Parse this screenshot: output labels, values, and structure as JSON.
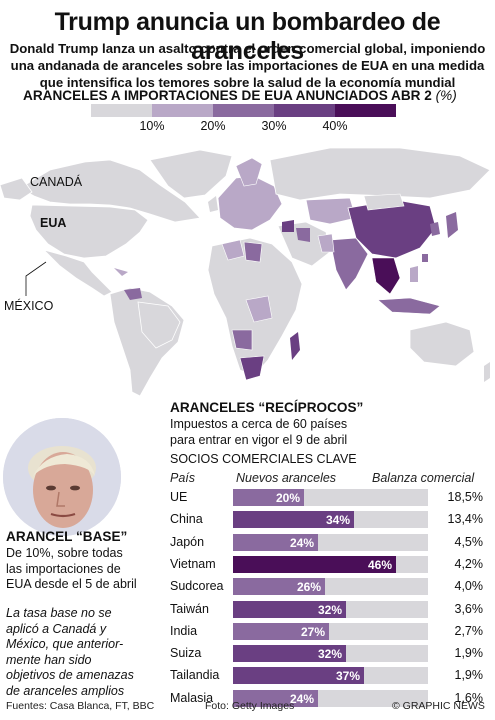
{
  "header": {
    "title": "Trump anuncia un bombardeo de aranceles",
    "subtitle_lines": [
      "Donald Trump lanza un asalto contra el orden comercial global, imponiendo",
      "una andanada de aranceles sobre las importaciones de EUA en una medida",
      "que intensifica los temores sobre la salud de la economía mundial"
    ]
  },
  "map": {
    "title": "ARANCELES A IMPORTACIONES DE EUA ANUNCIADOS ABR 2",
    "unit": "(%)",
    "scale_colors": [
      "#d8d7db",
      "#b9a8c7",
      "#8a6a9f",
      "#6a3f82",
      "#4a0e58"
    ],
    "scale_labels": [
      "10%",
      "20%",
      "30%",
      "40%"
    ],
    "labels": {
      "canada": "CANADÁ",
      "usa": "EUA",
      "mexico": "MÉXICO"
    }
  },
  "chart_data": {
    "type": "bar",
    "title": "ARANCELES “RECÍPROCOS”",
    "subtitle_lines": [
      "Impuestos a cerca de 60 países",
      "para entrar en vigor el 9 de abril"
    ],
    "section_title": "SOCIOS COMERCIALES CLAVE",
    "columns": [
      "País",
      "Nuevos aranceles",
      "Balanza comercial"
    ],
    "xlim": [
      0,
      55
    ],
    "categories": [
      "UE",
      "China",
      "Japón",
      "Vietnam",
      "Sudcorea",
      "Taiwán",
      "India",
      "Suiza",
      "Tailandia",
      "Malasia"
    ],
    "values": [
      20,
      34,
      24,
      46,
      26,
      32,
      27,
      32,
      37,
      24
    ],
    "value_labels": [
      "20%",
      "34%",
      "24%",
      "46%",
      "26%",
      "32%",
      "27%",
      "32%",
      "37%",
      "24%"
    ],
    "trade_balance": [
      "18,5%",
      "13,4%",
      "4,5%",
      "4,2%",
      "4,0%",
      "3,6%",
      "2,7%",
      "1,9%",
      "1,9%",
      "1,6%"
    ]
  },
  "base": {
    "title": "ARANCEL “BASE”",
    "desc_lines": [
      "De 10%, sobre todas",
      "las importaciones de",
      "EUA desde el 5 de abril"
    ],
    "note_lines": [
      "La tasa base no se",
      "aplicó a Canadá y",
      "México, que anterior-",
      "mente han sido",
      "objetivos de amenazas",
      "de aranceles amplios"
    ]
  },
  "footer": {
    "sources": "Fuentes: Casa Blanca, FT, BBC",
    "photo": "Foto: Getty Images",
    "credit": "© GRAPHIC NEWS"
  }
}
